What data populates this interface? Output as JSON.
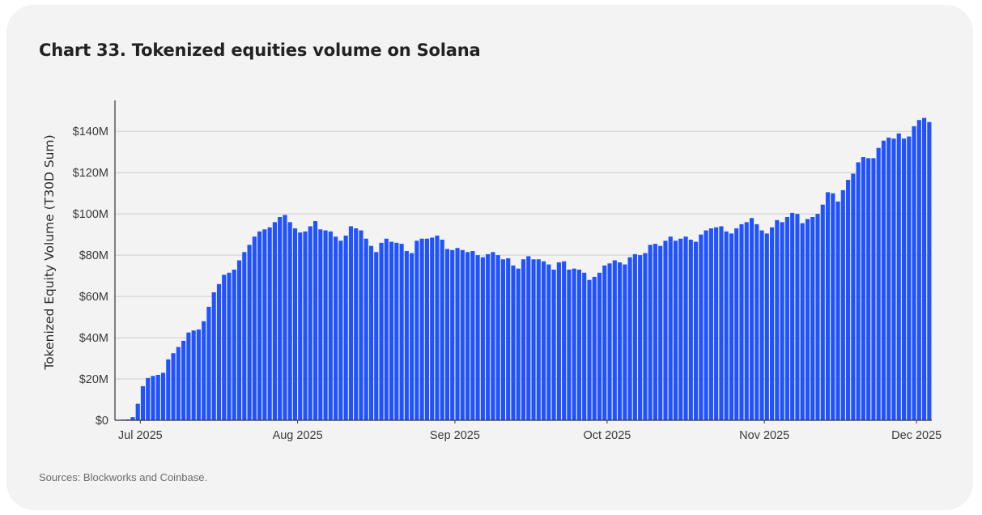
{
  "title": "Chart 33. Tokenized equities volume on Solana",
  "source": "Sources: Blockworks and Coinbase.",
  "chart_data": {
    "type": "bar",
    "title": "Chart 33. Tokenized equities volume on Solana",
    "ylabel": "Tokenized Equity Volume (T30D Sum)",
    "xlabel": "",
    "ylim": [
      0,
      155
    ],
    "y_unit": "USD millions",
    "y_ticks": [
      {
        "value": 0,
        "label": "$0"
      },
      {
        "value": 20,
        "label": "$20M"
      },
      {
        "value": 40,
        "label": "$40M"
      },
      {
        "value": 60,
        "label": "$60M"
      },
      {
        "value": 80,
        "label": "$80M"
      },
      {
        "value": 100,
        "label": "$100M"
      },
      {
        "value": 120,
        "label": "$120M"
      },
      {
        "value": 140,
        "label": "$140M"
      }
    ],
    "x_ticks": [
      {
        "date": "2025-07-01",
        "label": "Jul 2025"
      },
      {
        "date": "2025-08-01",
        "label": "Aug 2025"
      },
      {
        "date": "2025-09-01",
        "label": "Sep 2025"
      },
      {
        "date": "2025-10-01",
        "label": "Oct 2025"
      },
      {
        "date": "2025-11-01",
        "label": "Nov 2025"
      },
      {
        "date": "2025-12-01",
        "label": "Dec 2025"
      }
    ],
    "grid": true,
    "color": "#2152ff",
    "dates": [
      "2025-06-26",
      "2025-06-27",
      "2025-06-28",
      "2025-06-29",
      "2025-06-30",
      "2025-07-01",
      "2025-07-02",
      "2025-07-03",
      "2025-07-04",
      "2025-07-05",
      "2025-07-06",
      "2025-07-07",
      "2025-07-08",
      "2025-07-09",
      "2025-07-10",
      "2025-07-11",
      "2025-07-12",
      "2025-07-13",
      "2025-07-14",
      "2025-07-15",
      "2025-07-16",
      "2025-07-17",
      "2025-07-18",
      "2025-07-19",
      "2025-07-20",
      "2025-07-21",
      "2025-07-22",
      "2025-07-23",
      "2025-07-24",
      "2025-07-25",
      "2025-07-26",
      "2025-07-27",
      "2025-07-28",
      "2025-07-29",
      "2025-07-30",
      "2025-07-31",
      "2025-08-01",
      "2025-08-02",
      "2025-08-03",
      "2025-08-04",
      "2025-08-05",
      "2025-08-06",
      "2025-08-07",
      "2025-08-08",
      "2025-08-09",
      "2025-08-10",
      "2025-08-11",
      "2025-08-12",
      "2025-08-13",
      "2025-08-14",
      "2025-08-15",
      "2025-08-16",
      "2025-08-17",
      "2025-08-18",
      "2025-08-19",
      "2025-08-20",
      "2025-08-21",
      "2025-08-22",
      "2025-08-23",
      "2025-08-24",
      "2025-08-25",
      "2025-08-26",
      "2025-08-27",
      "2025-08-28",
      "2025-08-29",
      "2025-08-30",
      "2025-08-31",
      "2025-09-01",
      "2025-09-02",
      "2025-09-03",
      "2025-09-04",
      "2025-09-05",
      "2025-09-06",
      "2025-09-07",
      "2025-09-08",
      "2025-09-09",
      "2025-09-10",
      "2025-09-11",
      "2025-09-12",
      "2025-09-13",
      "2025-09-14",
      "2025-09-15",
      "2025-09-16",
      "2025-09-17",
      "2025-09-18",
      "2025-09-19",
      "2025-09-20",
      "2025-09-21",
      "2025-09-22",
      "2025-09-23",
      "2025-09-24",
      "2025-09-25",
      "2025-09-26",
      "2025-09-27",
      "2025-09-28",
      "2025-09-29",
      "2025-09-30",
      "2025-10-01",
      "2025-10-02",
      "2025-10-03",
      "2025-10-04",
      "2025-10-05",
      "2025-10-06",
      "2025-10-07",
      "2025-10-08",
      "2025-10-09",
      "2025-10-10",
      "2025-10-11",
      "2025-10-12",
      "2025-10-13",
      "2025-10-14",
      "2025-10-15",
      "2025-10-16",
      "2025-10-17",
      "2025-10-18",
      "2025-10-19",
      "2025-10-20",
      "2025-10-21",
      "2025-10-22",
      "2025-10-23",
      "2025-10-24",
      "2025-10-25",
      "2025-10-26",
      "2025-10-27",
      "2025-10-28",
      "2025-10-29",
      "2025-10-30",
      "2025-10-31",
      "2025-11-01",
      "2025-11-02",
      "2025-11-03",
      "2025-11-04",
      "2025-11-05",
      "2025-11-06",
      "2025-11-07",
      "2025-11-08",
      "2025-11-09",
      "2025-11-10",
      "2025-11-11",
      "2025-11-12",
      "2025-11-13",
      "2025-11-14",
      "2025-11-15",
      "2025-11-16",
      "2025-11-17",
      "2025-11-18",
      "2025-11-19",
      "2025-11-20",
      "2025-11-21",
      "2025-11-22",
      "2025-11-23",
      "2025-11-24",
      "2025-11-25",
      "2025-11-26",
      "2025-11-27",
      "2025-11-28",
      "2025-11-29",
      "2025-11-30",
      "2025-12-01",
      "2025-12-02",
      "2025-12-03"
    ],
    "values": [
      0.2,
      0.3,
      0.4,
      1.5,
      8,
      16.5,
      20.5,
      21.5,
      22,
      23,
      29.5,
      32.5,
      35.5,
      38.5,
      42.5,
      43.5,
      44,
      48,
      55,
      62,
      66,
      70.5,
      71.5,
      73,
      77.5,
      81.5,
      85,
      89,
      91.5,
      92.5,
      93.5,
      96,
      98.5,
      99.5,
      96,
      93,
      91,
      91.5,
      94,
      96.5,
      92.5,
      92,
      91.5,
      89,
      87,
      89.5,
      94,
      93,
      92,
      88,
      84.5,
      81.5,
      86,
      88,
      86.5,
      86,
      85.5,
      82,
      81,
      87,
      88,
      88,
      88.5,
      89.5,
      87.5,
      83,
      82.5,
      83.5,
      82.5,
      81.5,
      82,
      80,
      79,
      80.5,
      81.5,
      80,
      78,
      78.5,
      75,
      73.5,
      78,
      79.5,
      78,
      78,
      77,
      75.5,
      73,
      76.5,
      77,
      73,
      73.5,
      73,
      71.5,
      68,
      69.5,
      71.5,
      75,
      76,
      77.5,
      76.5,
      75.5,
      79,
      80.5,
      80,
      81,
      85,
      85.5,
      84.5,
      87,
      89,
      87,
      88,
      89,
      87.5,
      86.5,
      90,
      92,
      93,
      93.5,
      94,
      91.5,
      90.5,
      93,
      95,
      96,
      98,
      95,
      92,
      90.5,
      93.5,
      97,
      96,
      98.5,
      100.5,
      100,
      95.5,
      97.5,
      98.5,
      100,
      104.5,
      110.5,
      110,
      106,
      111.5,
      116.5,
      119.5,
      125,
      127.5,
      127,
      127,
      132,
      135.5,
      137,
      136.5,
      139,
      136.5,
      137.5,
      142.5,
      145.5,
      146.5,
      144.5
    ]
  }
}
